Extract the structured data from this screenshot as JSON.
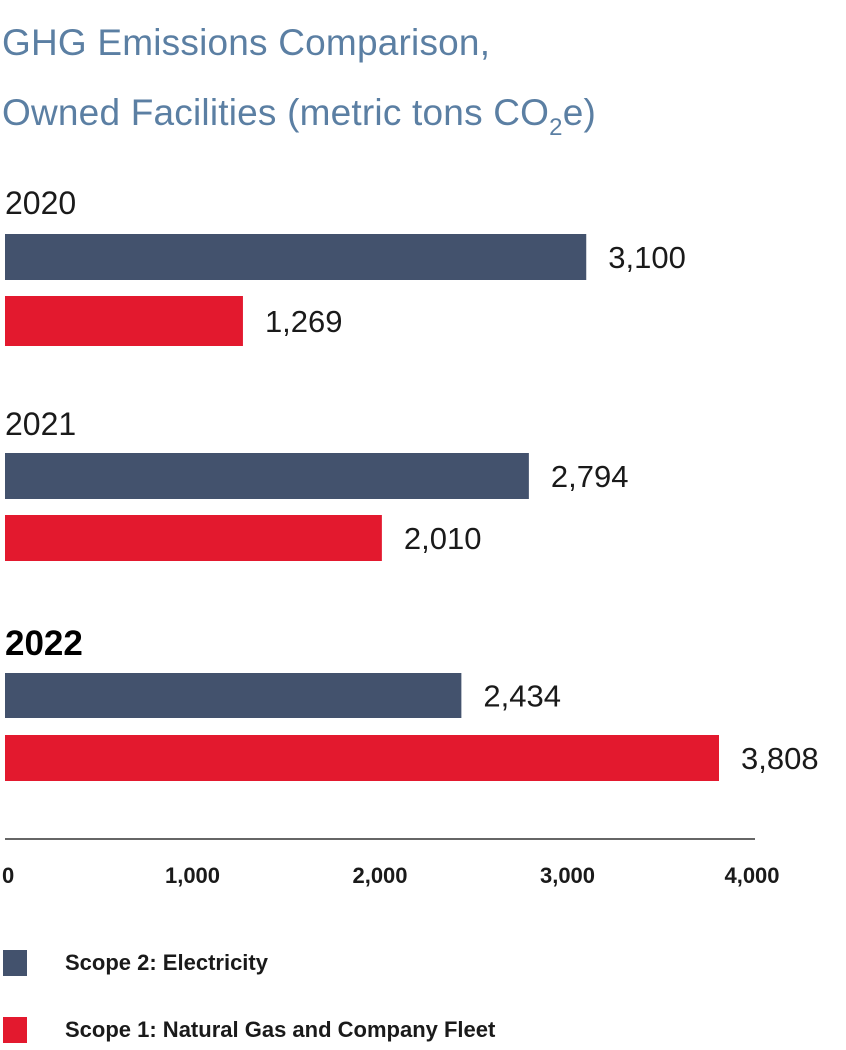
{
  "title": {
    "line1": "GHG Emissions Comparison,",
    "line2_main": "Owned Facilities (metric tons CO",
    "line2_sub": "2",
    "line2_end": "e)"
  },
  "colors": {
    "title": "#5b7fa3",
    "scope2": "#43526d",
    "scope1": "#e3192e",
    "axis": "#333333",
    "text": "#1a1a1a"
  },
  "chart_data": {
    "type": "bar",
    "orientation": "horizontal",
    "categories": [
      "2020",
      "2021",
      "2022"
    ],
    "highlighted_category": "2022",
    "series": [
      {
        "name": "Scope 2: Electricity",
        "values": [
          3100,
          2794,
          2434
        ],
        "labels": [
          "3,100",
          "2,794",
          "2,434"
        ]
      },
      {
        "name": "Scope 1: Natural Gas and Company Fleet",
        "values": [
          1269,
          2010,
          3808
        ],
        "labels": [
          "1,269",
          "2,010",
          "3,808"
        ]
      }
    ],
    "xlim": [
      0,
      4000
    ],
    "xticks": [
      0,
      1000,
      2000,
      3000,
      4000
    ],
    "xtick_labels": [
      "0",
      "1,000",
      "2,000",
      "3,000",
      "4,000"
    ],
    "legend_position": "bottom-left",
    "grid": false
  },
  "legend": {
    "items": [
      {
        "label": "Scope 2: Electricity",
        "color": "#43526d"
      },
      {
        "label": "Scope 1: Natural Gas and Company Fleet",
        "color": "#e3192e"
      }
    ]
  }
}
